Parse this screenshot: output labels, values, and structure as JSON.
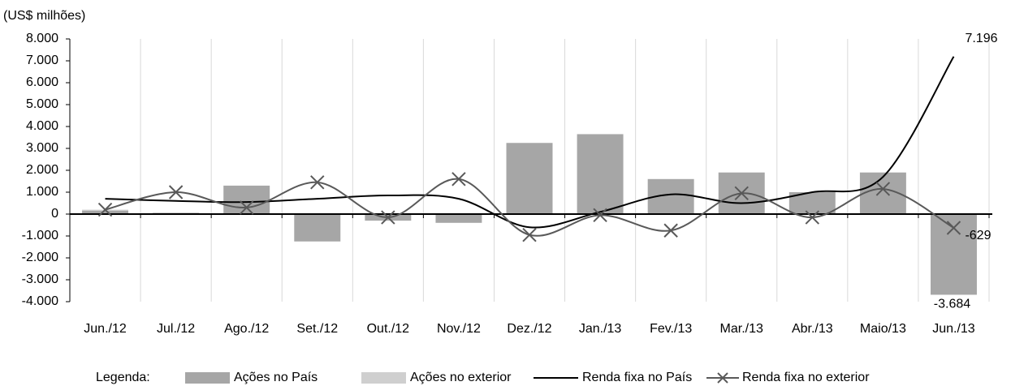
{
  "chart_data": {
    "type": "bar-line",
    "y_label": "(US$ milhões)",
    "legend_title": "Legenda:",
    "categories": [
      "Jun./12",
      "Jul./12",
      "Ago./12",
      "Set./12",
      "Out./12",
      "Nov./12",
      "Dez./12",
      "Jan./13",
      "Fev./13",
      "Mar./13",
      "Abr./13",
      "Maio/13",
      "Jun./13"
    ],
    "series": [
      {
        "name": "Ações no País",
        "kind": "bar",
        "color": "#a6a6a6",
        "values": [
          150,
          50,
          1300,
          -1250,
          -300,
          -400,
          3250,
          3650,
          1600,
          1900,
          1000,
          1900,
          -3684
        ],
        "value_labels": [
          null,
          null,
          null,
          null,
          null,
          null,
          null,
          null,
          null,
          null,
          null,
          null,
          "-3.684"
        ]
      },
      {
        "name": "Ações no exterior",
        "kind": "bar",
        "color": "#cfcfcf",
        "values": [
          50,
          20,
          0,
          0,
          0,
          0,
          0,
          0,
          0,
          0,
          0,
          0,
          0
        ]
      },
      {
        "name": "Renda fixa no País",
        "kind": "line",
        "color": "#000000",
        "values": [
          700,
          600,
          550,
          700,
          850,
          700,
          -600,
          100,
          900,
          500,
          1000,
          1700,
          7196
        ],
        "value_labels": [
          null,
          null,
          null,
          null,
          null,
          null,
          null,
          null,
          null,
          null,
          null,
          null,
          "7.196"
        ]
      },
      {
        "name": "Renda fixa no exterior",
        "kind": "line-marker",
        "color": "#595959",
        "values": [
          200,
          1000,
          300,
          1450,
          -150,
          1600,
          -950,
          -50,
          -750,
          950,
          -150,
          1150,
          -629
        ],
        "value_labels": [
          null,
          null,
          null,
          null,
          null,
          null,
          null,
          null,
          null,
          null,
          null,
          null,
          "-629"
        ]
      }
    ],
    "ylim": [
      -4000,
      8000
    ],
    "yticks": [
      {
        "value": 8000,
        "label": "8.000"
      },
      {
        "value": 7000,
        "label": "7.000"
      },
      {
        "value": 6000,
        "label": "6.000"
      },
      {
        "value": 5000,
        "label": "5.000"
      },
      {
        "value": 4000,
        "label": "4.000"
      },
      {
        "value": 3000,
        "label": "3.000"
      },
      {
        "value": 2000,
        "label": "2.000"
      },
      {
        "value": 1000,
        "label": "1.000"
      },
      0,
      {
        "value": -1000,
        "label": "-1.000"
      },
      {
        "value": -2000,
        "label": "-2.000"
      },
      {
        "value": -3000,
        "label": "-3.000"
      },
      {
        "value": -4000,
        "label": "-4.000"
      }
    ],
    "grid": true
  }
}
